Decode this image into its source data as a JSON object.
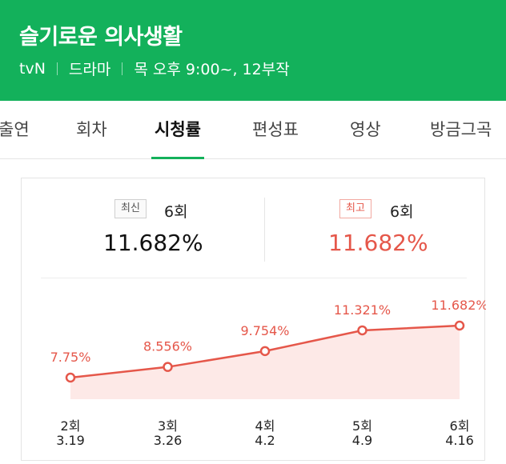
{
  "header": {
    "title": "슬기로운 의사생활",
    "channel": "tvN",
    "genre": "드라마",
    "schedule": "목 오후 9:00~, 12부작"
  },
  "tabs": [
    "출연",
    "회차",
    "시청률",
    "편성표",
    "영상",
    "방금그곡"
  ],
  "active_tab": "시청률",
  "summary": {
    "latest_badge": "최신",
    "latest_episode": "6회",
    "latest_value": "11.682%",
    "best_badge": "최고",
    "best_episode": "6회",
    "best_value": "11.682%"
  },
  "colors": {
    "brand": "#13b15b",
    "accent_red": "#e5574a",
    "area_fill": "#fde9e7"
  },
  "chart_data": {
    "type": "area",
    "x": [
      "2회",
      "3회",
      "4회",
      "5회",
      "6회"
    ],
    "dates": [
      "3.19",
      "3.26",
      "4.2",
      "4.9",
      "4.16"
    ],
    "values": [
      7.75,
      8.556,
      9.754,
      11.321,
      11.682
    ],
    "value_labels": [
      "7.75%",
      "8.556%",
      "9.754%",
      "11.321%",
      "11.682%"
    ],
    "grid": false
  }
}
